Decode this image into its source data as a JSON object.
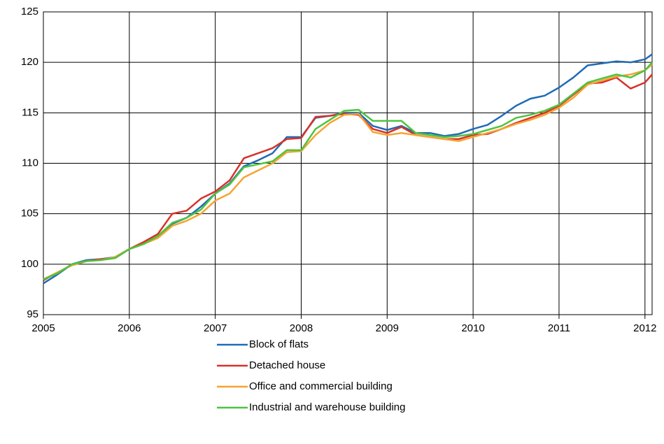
{
  "chart_data": {
    "type": "line",
    "x": [
      2005,
      2005.167,
      2005.333,
      2005.5,
      2005.667,
      2005.833,
      2006,
      2006.167,
      2006.333,
      2006.5,
      2006.667,
      2006.833,
      2007,
      2007.167,
      2007.333,
      2007.5,
      2007.667,
      2007.833,
      2008,
      2008.167,
      2008.333,
      2008.5,
      2008.667,
      2008.833,
      2009,
      2009.167,
      2009.333,
      2009.5,
      2009.667,
      2009.833,
      2010,
      2010.167,
      2010.333,
      2010.5,
      2010.667,
      2010.833,
      2011,
      2011.167,
      2011.333,
      2011.5,
      2011.667,
      2011.833,
      2012,
      2012.083
    ],
    "series": [
      {
        "name": "Block of flats",
        "color": "#1f6bb5",
        "values": [
          98.1,
          99.0,
          100.0,
          100.4,
          100.5,
          100.7,
          101.5,
          102.0,
          102.8,
          104.0,
          104.6,
          105.7,
          107.0,
          108.0,
          109.7,
          110.3,
          111.0,
          112.6,
          112.6,
          114.5,
          114.7,
          115.0,
          115.0,
          113.7,
          113.3,
          113.7,
          113.0,
          113.0,
          112.7,
          112.9,
          113.4,
          113.8,
          114.7,
          115.7,
          116.4,
          116.7,
          117.5,
          118.5,
          119.7,
          119.9,
          120.1,
          120.0,
          120.3,
          120.8
        ]
      },
      {
        "name": "Detached house",
        "color": "#d9312a",
        "values": [
          98.4,
          99.2,
          99.9,
          100.3,
          100.5,
          100.6,
          101.5,
          102.2,
          103.0,
          105.0,
          105.3,
          106.5,
          107.2,
          108.3,
          110.5,
          111.0,
          111.5,
          112.4,
          112.5,
          114.6,
          114.7,
          114.9,
          114.8,
          113.4,
          113.0,
          113.6,
          112.8,
          112.6,
          112.4,
          112.4,
          112.8,
          112.9,
          113.4,
          114.0,
          114.5,
          115.0,
          115.7,
          116.8,
          117.9,
          118.0,
          118.5,
          117.4,
          118.0,
          118.8
        ]
      },
      {
        "name": "Office and commercial building",
        "color": "#f5a432",
        "values": [
          98.5,
          99.2,
          99.9,
          100.3,
          100.4,
          100.7,
          101.5,
          102.0,
          102.6,
          103.8,
          104.3,
          105.0,
          106.3,
          107.0,
          108.6,
          109.3,
          110.0,
          111.1,
          111.2,
          112.8,
          114.0,
          114.8,
          114.9,
          113.1,
          112.8,
          113.0,
          112.8,
          112.6,
          112.4,
          112.2,
          112.6,
          113.0,
          113.4,
          113.9,
          114.3,
          114.8,
          115.5,
          116.5,
          117.8,
          118.2,
          118.6,
          118.8,
          119.2,
          119.8
        ]
      },
      {
        "name": "Industrial and warehouse building",
        "color": "#4dc43f",
        "values": [
          98.5,
          99.1,
          100.0,
          100.3,
          100.4,
          100.6,
          101.5,
          102.0,
          102.8,
          104.1,
          104.6,
          105.4,
          107.0,
          107.9,
          109.6,
          109.9,
          110.2,
          111.3,
          111.3,
          113.4,
          114.3,
          115.2,
          115.3,
          114.2,
          114.2,
          114.2,
          113.0,
          112.8,
          112.6,
          112.7,
          112.9,
          113.3,
          113.7,
          114.5,
          114.8,
          115.2,
          115.8,
          116.9,
          118.0,
          118.4,
          118.8,
          118.5,
          119.2,
          120.0
        ]
      }
    ],
    "xlim": [
      2005,
      2012.083
    ],
    "xticks": [
      2005,
      2006,
      2007,
      2008,
      2009,
      2010,
      2011,
      2012
    ],
    "ylim": [
      95,
      125
    ],
    "yticks": [
      95,
      100,
      105,
      110,
      115,
      120,
      125
    ],
    "grid": true,
    "legend": "bottom"
  }
}
